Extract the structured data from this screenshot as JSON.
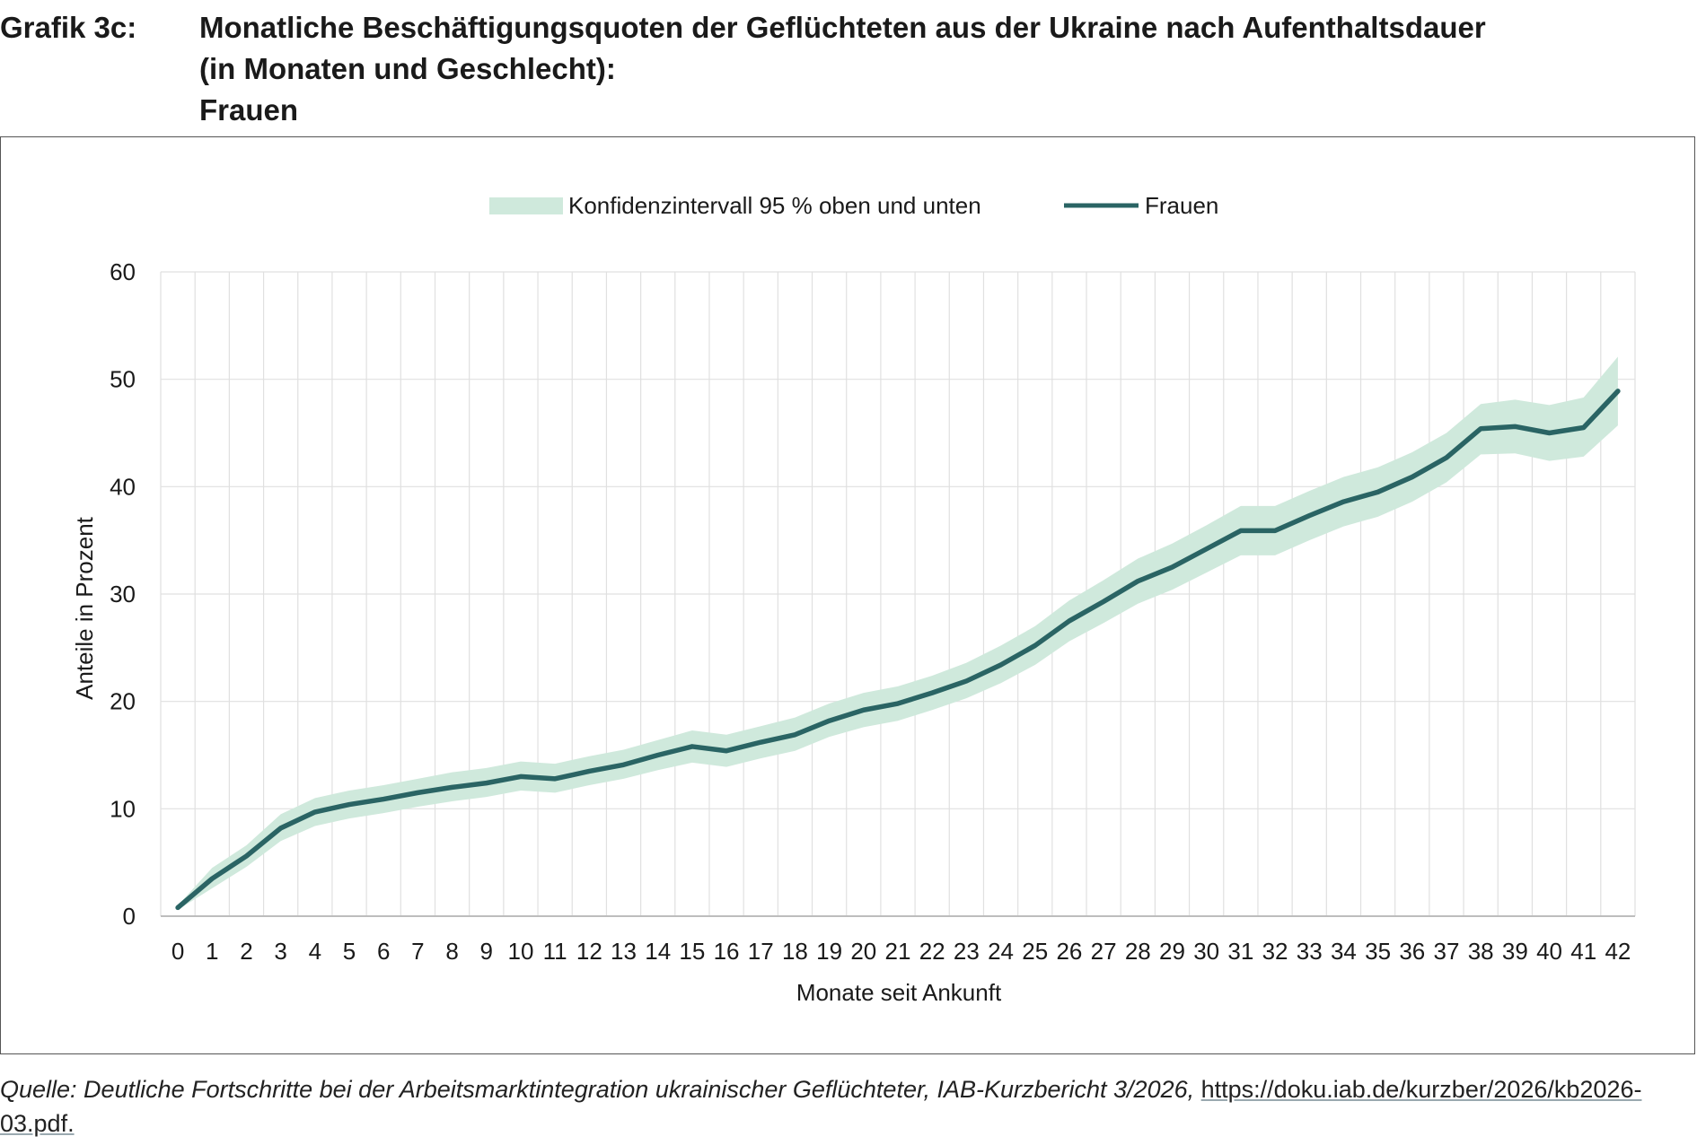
{
  "figure": {
    "label": "Grafik 3c:",
    "title_lines": [
      "Monatliche Beschäftigungsquoten der Geflüchteten aus der Ukraine nach Aufenthaltsdauer",
      "(in Monaten und Geschlecht):",
      "Frauen"
    ]
  },
  "source": {
    "text": "Quelle: Deutliche Fortschritte bei der Arbeitsmarktintegration ukrainischer Geflüchteter, IAB-Kurzbericht 3/2026,",
    "link_part1": "https://doku.iab.de/kurzber/2026/kb2026-",
    "link_part2": "03.pdf."
  },
  "colors": {
    "line": "#2a6464",
    "band": "#cfe9dc",
    "grid": "#e0e0e0",
    "axis": "#bdbdbd"
  },
  "chart_data": {
    "type": "line",
    "xlabel": "Monate seit Ankunft",
    "ylabel": "Anteile in Prozent",
    "ylim": [
      0,
      60
    ],
    "yticks": [
      0,
      10,
      20,
      30,
      40,
      50,
      60
    ],
    "grid": true,
    "legend_position": "top-center",
    "x": [
      0,
      1,
      2,
      3,
      4,
      5,
      6,
      7,
      8,
      9,
      10,
      11,
      12,
      13,
      14,
      15,
      16,
      17,
      18,
      19,
      20,
      21,
      22,
      23,
      24,
      25,
      26,
      27,
      28,
      29,
      30,
      31,
      32,
      33,
      34,
      35,
      36,
      37,
      38,
      39,
      40,
      41,
      42
    ],
    "series": [
      {
        "name": "Frauen",
        "kind": "line",
        "values": [
          0.8,
          3.5,
          5.6,
          8.2,
          9.7,
          10.4,
          10.9,
          11.5,
          12.0,
          12.4,
          13.0,
          12.8,
          13.5,
          14.1,
          15.0,
          15.8,
          15.4,
          16.2,
          16.9,
          18.2,
          19.2,
          19.8,
          20.8,
          21.9,
          23.4,
          25.2,
          27.5,
          29.3,
          31.2,
          32.5,
          34.2,
          35.9,
          35.9,
          37.3,
          38.6,
          39.5,
          40.9,
          42.7,
          45.4,
          45.6,
          45.0,
          45.5,
          48.9
        ]
      },
      {
        "name": "Konfidenzintervall 95 % oben und unten",
        "kind": "band",
        "lower": [
          0.6,
          2.6,
          4.6,
          7.0,
          8.4,
          9.1,
          9.6,
          10.2,
          10.7,
          11.1,
          11.7,
          11.5,
          12.2,
          12.8,
          13.6,
          14.3,
          13.9,
          14.7,
          15.4,
          16.7,
          17.6,
          18.2,
          19.2,
          20.3,
          21.7,
          23.4,
          25.6,
          27.3,
          29.1,
          30.4,
          32.0,
          33.6,
          33.6,
          35.0,
          36.3,
          37.2,
          38.6,
          40.4,
          43.0,
          43.1,
          42.4,
          42.8,
          45.7
        ],
        "upper": [
          1.0,
          4.5,
          6.6,
          9.5,
          11.0,
          11.7,
          12.2,
          12.8,
          13.4,
          13.8,
          14.4,
          14.2,
          14.9,
          15.5,
          16.4,
          17.3,
          16.9,
          17.7,
          18.5,
          19.8,
          20.8,
          21.4,
          22.4,
          23.6,
          25.2,
          27.0,
          29.4,
          31.3,
          33.3,
          34.7,
          36.4,
          38.2,
          38.2,
          39.6,
          40.9,
          41.8,
          43.2,
          45.0,
          47.7,
          48.1,
          47.6,
          48.3,
          52.1
        ]
      }
    ]
  }
}
